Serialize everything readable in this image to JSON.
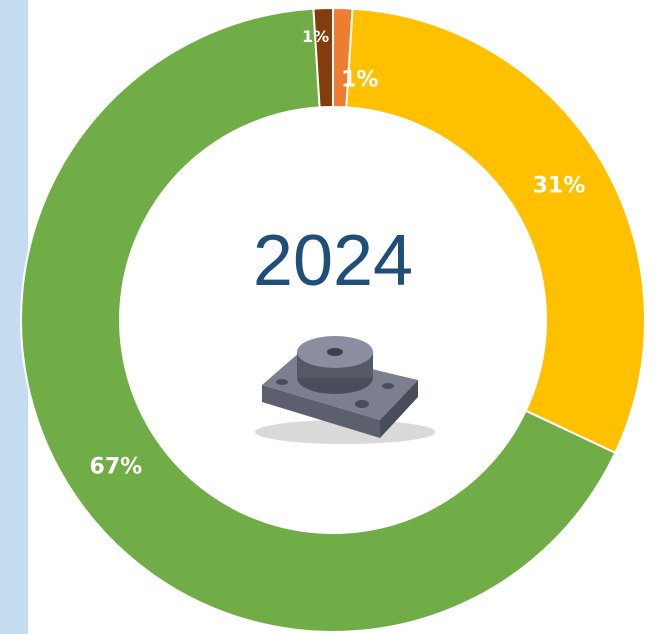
{
  "chart_data": {
    "type": "donut",
    "center_label": "2024",
    "values": [
      1,
      31,
      67,
      1
    ],
    "value_labels": [
      "1%",
      "31%",
      "67%",
      "1%"
    ],
    "colors": [
      "#ed7d31",
      "#ffc000",
      "#70ad47",
      "#843c0c"
    ]
  }
}
